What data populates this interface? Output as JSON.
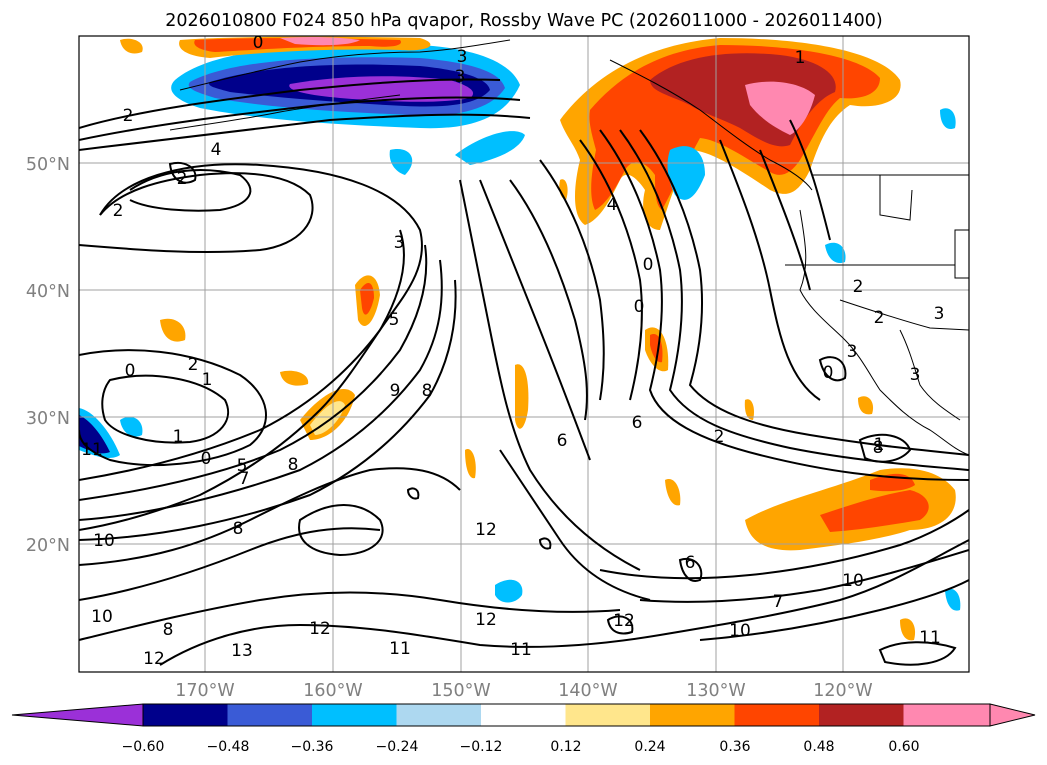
{
  "title": "2026010800 F024 850 hPa qvapor, Rossby Wave PC (2026011000 - 2026011400)",
  "map": {
    "lat_ticks": [
      "50°N",
      "40°N",
      "30°N",
      "20°N"
    ],
    "lon_ticks": [
      "170°W",
      "160°W",
      "150°W",
      "140°W",
      "130°W",
      "120°W"
    ],
    "contour_labels": [
      "0",
      "2",
      "1",
      "3",
      "2",
      "4",
      "3",
      "2",
      "3",
      "5",
      "8",
      "9",
      "8",
      "6",
      "6",
      "0",
      "0",
      "4",
      "2",
      "2",
      "3",
      "2",
      "3",
      "1",
      "0",
      "2",
      "1",
      "0",
      "5",
      "7",
      "8",
      "12",
      "6",
      "7",
      "10",
      "10",
      "10",
      "10",
      "12",
      "12",
      "11",
      "11",
      "12",
      "8",
      "12",
      "13",
      "11",
      "11",
      "8",
      "1",
      "1",
      "0",
      "3"
    ]
  },
  "colorbar": {
    "tick_labels": [
      "−0.60",
      "−0.48",
      "−0.36",
      "−0.24",
      "−0.12",
      "0.12",
      "0.24",
      "0.36",
      "0.48",
      "0.60"
    ],
    "colors": [
      "#9b30d8",
      "#00008b",
      "#3a5bd6",
      "#00bfff",
      "#add8f0",
      "#ffffff",
      "#ffe68c",
      "#ffa500",
      "#ff4500",
      "#b22222",
      "#ff88b0",
      "#ff88b0"
    ],
    "under_color": "#9b30d8",
    "over_color": "#ff88b0"
  }
}
